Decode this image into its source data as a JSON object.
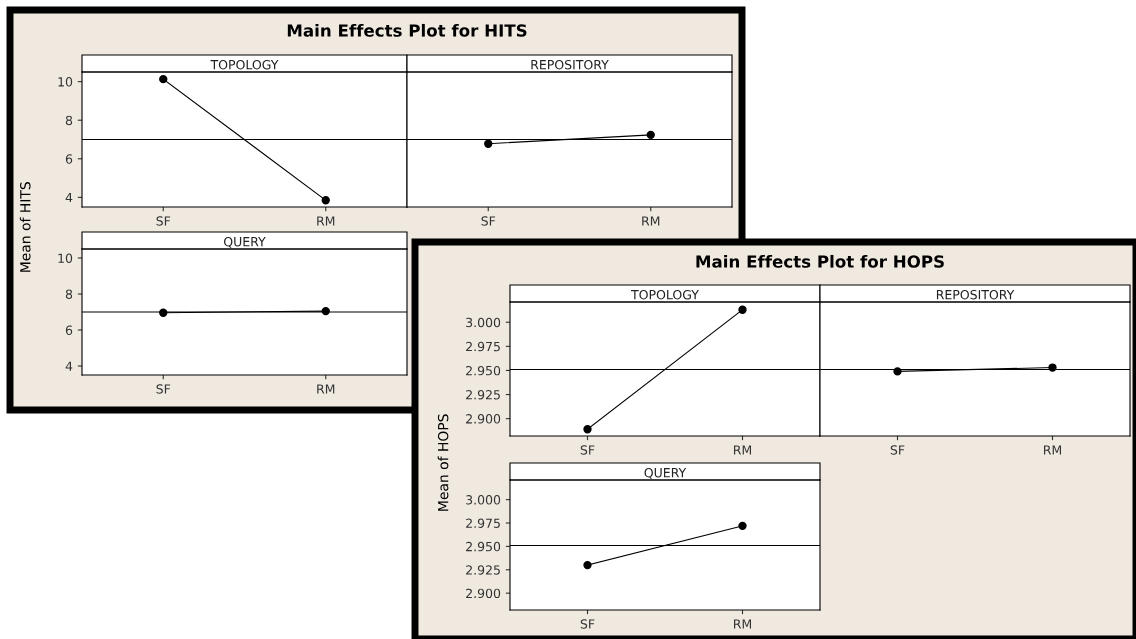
{
  "chart_data": [
    {
      "type": "line",
      "title": "TOPOLOGY",
      "ylabel": "Mean of HITS",
      "annotations": [
        "Main Effects Plot for HITS"
      ],
      "categories": [
        "SF",
        "RM"
      ],
      "series": [
        {
          "color": "#000000",
          "values": [
            10.13,
            3.85
          ]
        }
      ],
      "ylim": [
        3.5,
        10.5
      ],
      "yticks": [
        4,
        6,
        8,
        10
      ],
      "ref_lines": [
        {
          "axis": "y",
          "value": 7.0,
          "color": "#000000"
        }
      ],
      "marker": "circle",
      "grid": false,
      "legend": false
    },
    {
      "type": "line",
      "title": "REPOSITORY",
      "categories": [
        "SF",
        "RM"
      ],
      "series": [
        {
          "color": "#000000",
          "values": [
            6.78,
            7.24
          ]
        }
      ],
      "ylim": [
        3.5,
        10.5
      ],
      "tick_labels": "x",
      "ref_lines": [
        {
          "axis": "y",
          "value": 7.0,
          "color": "#000000"
        }
      ],
      "marker": "circle",
      "grid": false,
      "legend": false
    },
    {
      "type": "line",
      "title": "QUERY",
      "categories": [
        "SF",
        "RM"
      ],
      "series": [
        {
          "color": "#000000",
          "values": [
            6.96,
            7.05
          ]
        }
      ],
      "ylim": [
        3.5,
        10.5
      ],
      "yticks": [
        4,
        6,
        8,
        10
      ],
      "ref_lines": [
        {
          "axis": "y",
          "value": 7.0,
          "color": "#000000"
        }
      ],
      "marker": "circle",
      "grid": false,
      "legend": false
    },
    {
      "type": "line",
      "title": "TOPOLOGY",
      "ylabel": "Mean of HOPS",
      "annotations": [
        "Main Effects Plot for HOPS"
      ],
      "categories": [
        "SF",
        "RM"
      ],
      "series": [
        {
          "color": "#000000",
          "values": [
            2.889,
            3.013
          ]
        }
      ],
      "ylim": [
        2.882,
        3.021
      ],
      "yticks": [
        {
          "value": 2.9,
          "label": "2.900"
        },
        {
          "value": 2.925,
          "label": "2.925"
        },
        {
          "value": 2.95,
          "label": "2.950"
        },
        {
          "value": 2.975,
          "label": "2.975"
        },
        {
          "value": 3.0,
          "label": "3.000"
        }
      ],
      "ref_lines": [
        {
          "axis": "y",
          "value": 2.951,
          "color": "#000000"
        }
      ],
      "marker": "circle",
      "grid": false,
      "legend": false
    },
    {
      "type": "line",
      "title": "REPOSITORY",
      "categories": [
        "SF",
        "RM"
      ],
      "series": [
        {
          "color": "#000000",
          "values": [
            2.949,
            2.953
          ]
        }
      ],
      "ylim": [
        2.882,
        3.021
      ],
      "tick_labels": "x",
      "ref_lines": [
        {
          "axis": "y",
          "value": 2.951,
          "color": "#000000"
        }
      ],
      "marker": "circle",
      "grid": false,
      "legend": false
    },
    {
      "type": "line",
      "title": "QUERY",
      "categories": [
        "SF",
        "RM"
      ],
      "series": [
        {
          "color": "#000000",
          "values": [
            2.93,
            2.972
          ]
        }
      ],
      "ylim": [
        2.882,
        3.021
      ],
      "yticks": [
        {
          "value": 2.9,
          "label": "2.900"
        },
        {
          "value": 2.925,
          "label": "2.925"
        },
        {
          "value": 2.95,
          "label": "2.950"
        },
        {
          "value": 2.975,
          "label": "2.975"
        },
        {
          "value": 3.0,
          "label": "3.000"
        }
      ],
      "ref_lines": [
        {
          "axis": "y",
          "value": 2.951,
          "color": "#000000"
        }
      ],
      "marker": "circle",
      "grid": false,
      "legend": false
    }
  ]
}
